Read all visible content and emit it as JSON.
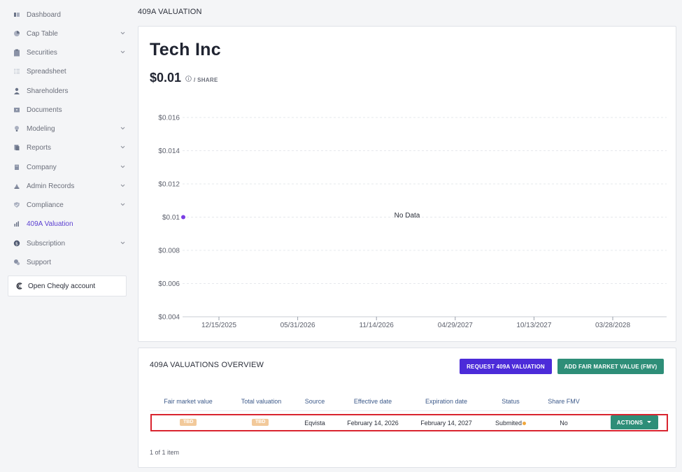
{
  "sidebar": {
    "items": [
      {
        "label": "Dashboard",
        "icon": "dashboard-icon",
        "chevron": false,
        "active": false
      },
      {
        "label": "Cap Table",
        "icon": "pie-chart-icon",
        "chevron": true,
        "active": false
      },
      {
        "label": "Securities",
        "icon": "clipboard-icon",
        "chevron": true,
        "active": false
      },
      {
        "label": "Spreadsheet",
        "icon": "spreadsheet-icon",
        "chevron": false,
        "active": false
      },
      {
        "label": "Shareholders",
        "icon": "user-icon",
        "chevron": false,
        "active": false
      },
      {
        "label": "Documents",
        "icon": "folder-icon",
        "chevron": false,
        "active": false
      },
      {
        "label": "Modeling",
        "icon": "bulb-icon",
        "chevron": true,
        "active": false
      },
      {
        "label": "Reports",
        "icon": "report-icon",
        "chevron": true,
        "active": false
      },
      {
        "label": "Company",
        "icon": "building-icon",
        "chevron": true,
        "active": false
      },
      {
        "label": "Admin Records",
        "icon": "records-icon",
        "chevron": true,
        "active": false
      },
      {
        "label": "Compliance",
        "icon": "shield-icon",
        "chevron": true,
        "active": false
      },
      {
        "label": "409A Valuation",
        "icon": "bar-chart-icon",
        "chevron": false,
        "active": true
      },
      {
        "label": "Subscription",
        "icon": "dollar-icon",
        "chevron": true,
        "active": false
      },
      {
        "label": "Support",
        "icon": "support-icon",
        "chevron": false,
        "active": false
      }
    ],
    "cheqly_label": "Open Cheqly account"
  },
  "header": {
    "title": "409A VALUATION"
  },
  "company": {
    "name": "Tech Inc",
    "share_price": "$0.01",
    "unit": "/ SHARE"
  },
  "chart_data": {
    "type": "line",
    "y_ticks": [
      "$0.016",
      "$0.014",
      "$0.012",
      "$0.01",
      "$0.008",
      "$0.006",
      "$0.004"
    ],
    "y_values": [
      0.016,
      0.014,
      0.012,
      0.01,
      0.008,
      0.006,
      0.004
    ],
    "ylim": [
      0.004,
      0.016
    ],
    "x_ticks": [
      "12/15/2025",
      "05/31/2026",
      "11/14/2026",
      "04/29/2027",
      "10/13/2027",
      "03/28/2028"
    ],
    "series": [
      {
        "values": [
          0.01
        ]
      }
    ],
    "no_data_label": "No Data",
    "grid": true,
    "point_color": "#7b3fe4"
  },
  "overview": {
    "title": "409A VALUATIONS OVERVIEW",
    "request_button": "REQUEST 409A VALUATION",
    "fmv_button": "ADD FAIR MARKET VALUE (FMV)",
    "columns": [
      "Fair market value",
      "Total valuation",
      "Source",
      "Effective date",
      "Expiration date",
      "Status",
      "Share FMV"
    ],
    "rows": [
      {
        "fair_market_value": "TBD",
        "total_valuation": "TBD",
        "source": "Eqvista",
        "effective_date": "February 14, 2026",
        "expiration_date": "February 14, 2027",
        "status": "Submited",
        "share_fmv": "No",
        "actions_label": "ACTIONS"
      }
    ],
    "pager": "1 of 1 item"
  },
  "colors": {
    "accent": "#5b3fd1",
    "primary_button": "#4c2bd9",
    "secondary_button": "#2e8e78",
    "highlight": "#d9242f",
    "badge": "#f2c99a",
    "status_dot": "#f0a73d"
  }
}
